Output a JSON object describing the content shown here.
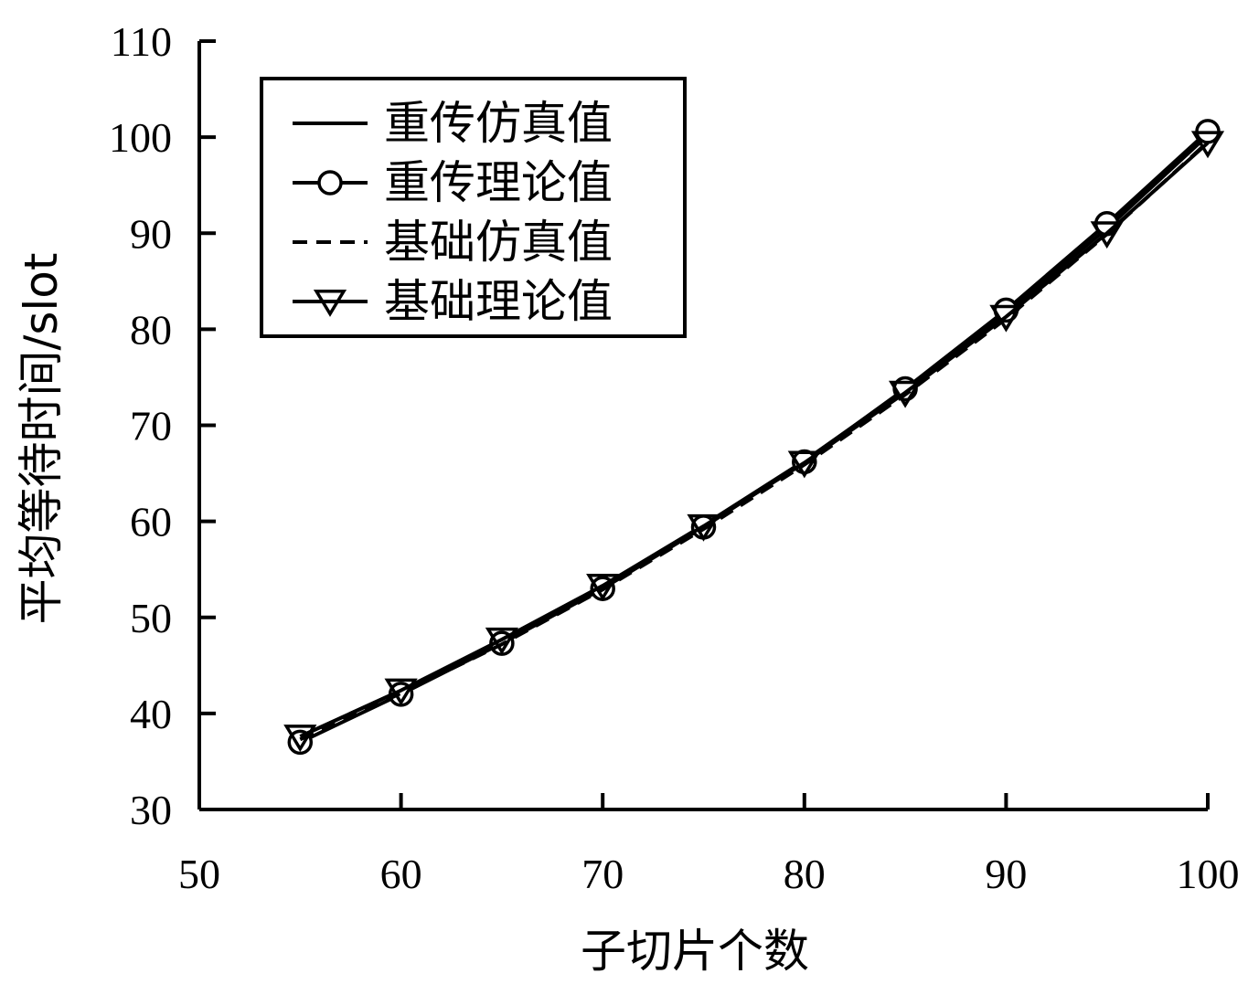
{
  "chart_data": {
    "type": "line",
    "xlabel": "子切片个数",
    "ylabel": "平均等待时间/slot",
    "xlim": [
      50,
      100
    ],
    "ylim": [
      30,
      110
    ],
    "xticks": [
      "50",
      "60",
      "70",
      "80",
      "90",
      "100"
    ],
    "yticks": [
      "30",
      "40",
      "50",
      "60",
      "70",
      "80",
      "90",
      "100",
      "110"
    ],
    "grid": false,
    "legend_position": "top-left",
    "x": [
      55,
      60,
      65,
      70,
      75,
      80,
      85,
      90,
      95,
      100
    ],
    "series": [
      {
        "name": "重传仿真值",
        "style": "solid",
        "marker": "none",
        "values": [
          37.6,
          42.4,
          47.6,
          53.3,
          59.6,
          66.3,
          73.7,
          81.7,
          90.5,
          100.2
        ]
      },
      {
        "name": "重传理论值",
        "style": "solid",
        "marker": "circle",
        "values": [
          37.0,
          42.0,
          47.3,
          53.0,
          59.4,
          66.2,
          73.8,
          82.0,
          91.0,
          100.6
        ]
      },
      {
        "name": "基础仿真值",
        "style": "dashed",
        "marker": "none",
        "values": [
          37.3,
          42.1,
          47.2,
          52.9,
          59.2,
          65.9,
          73.2,
          81.1,
          89.9,
          99.5
        ]
      },
      {
        "name": "基础理论值",
        "style": "solid",
        "marker": "triangle-down",
        "values": [
          37.6,
          42.4,
          47.7,
          53.3,
          59.5,
          66.1,
          73.4,
          81.3,
          90.0,
          99.4
        ]
      }
    ]
  }
}
